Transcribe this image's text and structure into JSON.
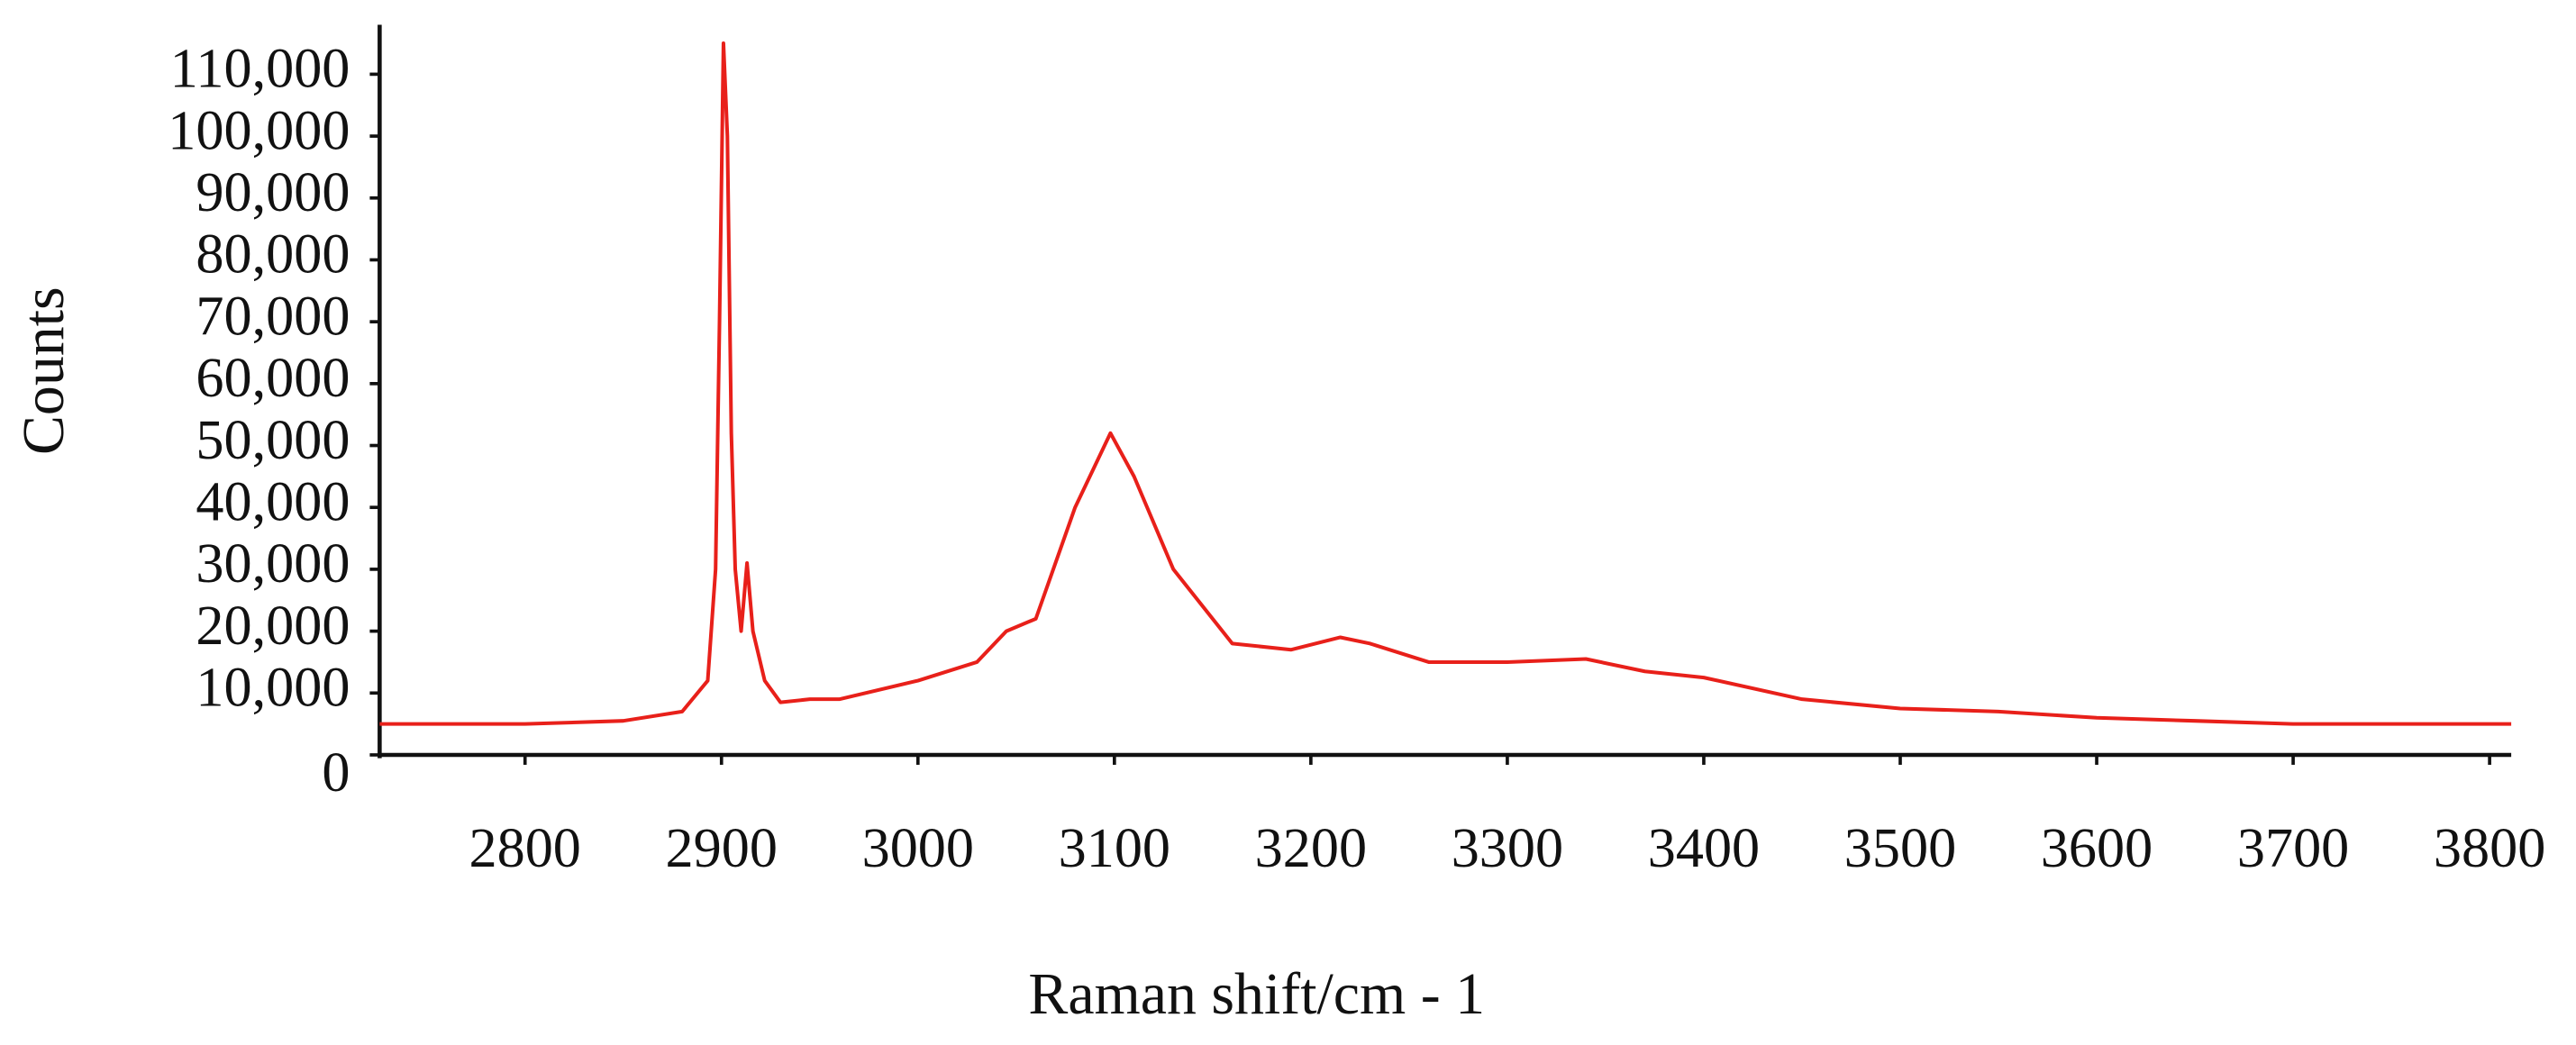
{
  "chart_data": {
    "type": "line",
    "x_label": "Raman shift/cm - 1",
    "y_label": "Counts",
    "xlim": [
      2726,
      3811
    ],
    "ylim": [
      0,
      118000
    ],
    "xticks": [
      2800,
      2900,
      3000,
      3100,
      3200,
      3300,
      3400,
      3500,
      3600,
      3700,
      3800
    ],
    "yticks": [
      0,
      {
        "value": 10000,
        "label": "10,000"
      },
      {
        "value": 20000,
        "label": "20,000"
      },
      {
        "value": 30000,
        "label": "30,000"
      },
      {
        "value": 40000,
        "label": "40,000"
      },
      {
        "value": 50000,
        "label": "50,000"
      },
      {
        "value": 60000,
        "label": "60,000"
      },
      {
        "value": 70000,
        "label": "70,000"
      },
      {
        "value": 80000,
        "label": "80,000"
      },
      {
        "value": 90000,
        "label": "90,000"
      },
      {
        "value": 100000,
        "label": "100,000"
      },
      {
        "value": 110000,
        "label": "110,000"
      }
    ],
    "x": [
      2726,
      2800,
      2850,
      2880,
      2893,
      2897,
      2899,
      2901,
      2903,
      2905,
      2907,
      2910,
      2913,
      2916,
      2922,
      2930,
      2945,
      2960,
      3000,
      3030,
      3045,
      3060,
      3080,
      3098,
      3110,
      3130,
      3160,
      3190,
      3215,
      3230,
      3260,
      3300,
      3340,
      3370,
      3400,
      3450,
      3500,
      3550,
      3600,
      3650,
      3700,
      3811
    ],
    "series": [
      {
        "color": "#e8201a",
        "values": [
          5000,
          5000,
          5500,
          7000,
          12000,
          30000,
          70000,
          115000,
          100000,
          52000,
          30000,
          20000,
          31000,
          20000,
          12000,
          8500,
          9000,
          9000,
          12000,
          15000,
          20000,
          22000,
          40000,
          52000,
          45000,
          30000,
          18000,
          17000,
          19000,
          18000,
          15000,
          15000,
          15500,
          13500,
          12500,
          9000,
          7500,
          7000,
          6000,
          5500,
          5000,
          5000
        ]
      }
    ]
  }
}
